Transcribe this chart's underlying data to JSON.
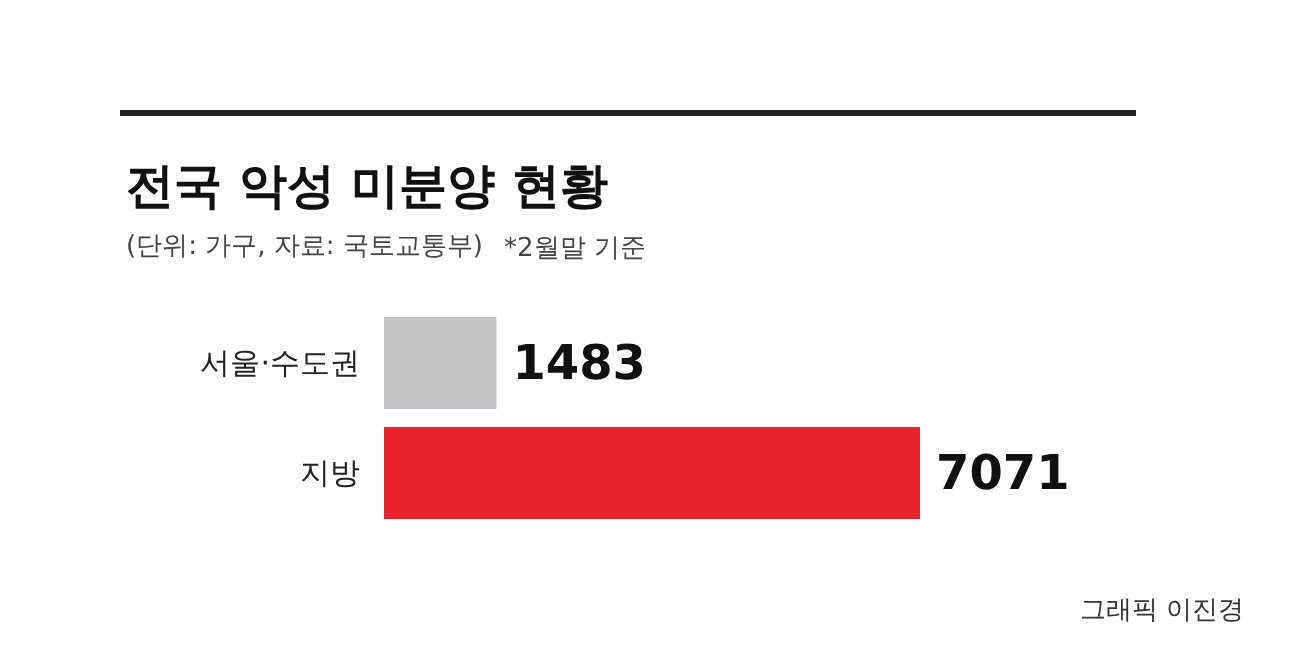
{
  "chart_data": {
    "type": "bar",
    "orientation": "horizontal",
    "title": "전국 악성 미분양 현황",
    "subtitle": "(단위: 가구, 자료: 국토교통부)",
    "annotations": [
      "*2월말 기준",
      "그래픽 이진경"
    ],
    "categories": [
      "서울·수도권",
      "지방"
    ],
    "values": [
      1483,
      7071
    ],
    "colors": [
      "#c4c4c6",
      "#e8232b"
    ],
    "data_labels": true
  }
}
